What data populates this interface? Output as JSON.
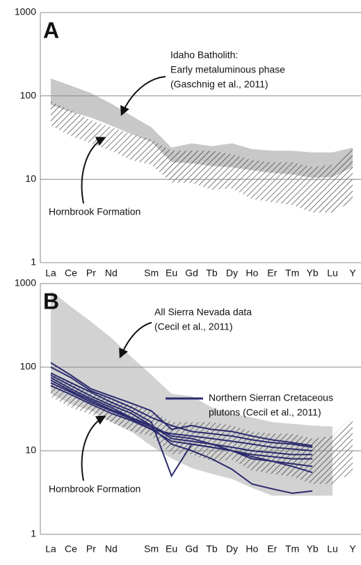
{
  "chart_data": [
    {
      "type": "range-area",
      "panel_label": "A",
      "log_scale": true,
      "grid": true,
      "categories": [
        "La",
        "Ce",
        "Pr",
        "Nd",
        null,
        "Sm",
        "Eu",
        "Gd",
        "Tb",
        "Dy",
        "Ho",
        "Er",
        "Tm",
        "Yb",
        "Lu",
        "Y"
      ],
      "ylim": [
        1,
        1000
      ],
      "yticks": [
        1,
        10,
        100,
        1000
      ],
      "bands": [
        {
          "name": [
            "Idaho Batholith:",
            "Early metaluminous phase",
            "(Gaschnig et al., 2011)"
          ],
          "color": "#c8c8c8",
          "upper": [
            162,
            133,
            108,
            81,
            58,
            42,
            24,
            27,
            25,
            27,
            23,
            22,
            22,
            21,
            21,
            24
          ],
          "lower": [
            78,
            64,
            55,
            44,
            35,
            28,
            16,
            15.5,
            14.4,
            13.9,
            12.8,
            11.9,
            11.4,
            10.4,
            10.6,
            13.9
          ]
        },
        {
          "name": [
            "Hornbrook Formation"
          ],
          "color": "#222222",
          "pattern": "hatch",
          "upper": [
            86,
            67,
            51,
            42,
            35,
            30,
            22,
            22,
            22,
            20,
            17,
            16,
            16,
            14,
            15,
            26
          ],
          "lower": [
            44,
            33,
            27,
            22,
            17,
            15,
            9.1,
            9.1,
            7.5,
            7.8,
            5.8,
            5.3,
            4.9,
            4,
            4,
            5.5
          ]
        }
      ]
    },
    {
      "type": "range-area",
      "panel_label": "B",
      "log_scale": true,
      "grid": true,
      "categories": [
        "La",
        "Ce",
        "Pr",
        "Nd",
        null,
        "Sm",
        "Eu",
        "Gd",
        "Tb",
        "Dy",
        "Ho",
        "Er",
        "Tm",
        "Yb",
        "Lu",
        "Y"
      ],
      "ylim": [
        1,
        1000
      ],
      "yticks": [
        1,
        10,
        100,
        1000
      ],
      "bands": [
        {
          "name": [
            "All Sierra Nevada data",
            "(Cecil et al., 2011)"
          ],
          "color": "#d2d2d2",
          "upper": [
            820,
            530,
            350,
            225,
            133,
            81,
            48,
            45,
            33,
            28,
            25,
            22,
            21,
            20,
            19.5,
            null
          ],
          "lower": [
            48,
            36,
            30,
            22,
            17,
            11.4,
            8.1,
            6.2,
            5.3,
            4.6,
            3.6,
            2.9,
            2.9,
            2.9,
            2.9,
            null
          ]
        },
        {
          "name": [
            "Hornbrook Formation"
          ],
          "color": "#222222",
          "pattern": "hatch",
          "upper": [
            86,
            67,
            51,
            42,
            35,
            30,
            22,
            22,
            22,
            20,
            17,
            16,
            16,
            14,
            15,
            26
          ],
          "lower": [
            44,
            33,
            27,
            22,
            17,
            15,
            9.1,
            9.1,
            7.5,
            7.8,
            5.8,
            5.3,
            4.9,
            4,
            4,
            5.5
          ]
        }
      ],
      "lines": {
        "name": [
          "Northern Sierran Cretaceous",
          "plutons (Cecil et al., 2011)"
        ],
        "color": "#2b2a6e",
        "series": [
          [
            113,
            80,
            55,
            45,
            37,
            30,
            18,
            20,
            18,
            17,
            15,
            13.5,
            12.5,
            11.5,
            null,
            null
          ],
          [
            100,
            75,
            52,
            42,
            33,
            25,
            20,
            17,
            16,
            15,
            13.5,
            12.5,
            12,
            11,
            null,
            null
          ],
          [
            85,
            65,
            50,
            38,
            30,
            22,
            5,
            12,
            11,
            10,
            9,
            8.5,
            8,
            8,
            null,
            null
          ],
          [
            80,
            60,
            45,
            35,
            28,
            20,
            15,
            14,
            12,
            10,
            8,
            7.5,
            7,
            6.5,
            null,
            null
          ],
          [
            75,
            55,
            42,
            33,
            25,
            19,
            12,
            10,
            8,
            6,
            4,
            3.5,
            3.1,
            3.3,
            null,
            null
          ],
          [
            70,
            52,
            40,
            31,
            25,
            20,
            14,
            13,
            12,
            11,
            10,
            9.5,
            9,
            9,
            null,
            null
          ],
          [
            65,
            50,
            38,
            30,
            24,
            18,
            13,
            12,
            11,
            10,
            8.5,
            7.5,
            6.5,
            5.5,
            null,
            null
          ],
          [
            60,
            47,
            36,
            28,
            23,
            18,
            16,
            15,
            14,
            13,
            12,
            11,
            10.5,
            10,
            null,
            null
          ]
        ]
      }
    }
  ]
}
